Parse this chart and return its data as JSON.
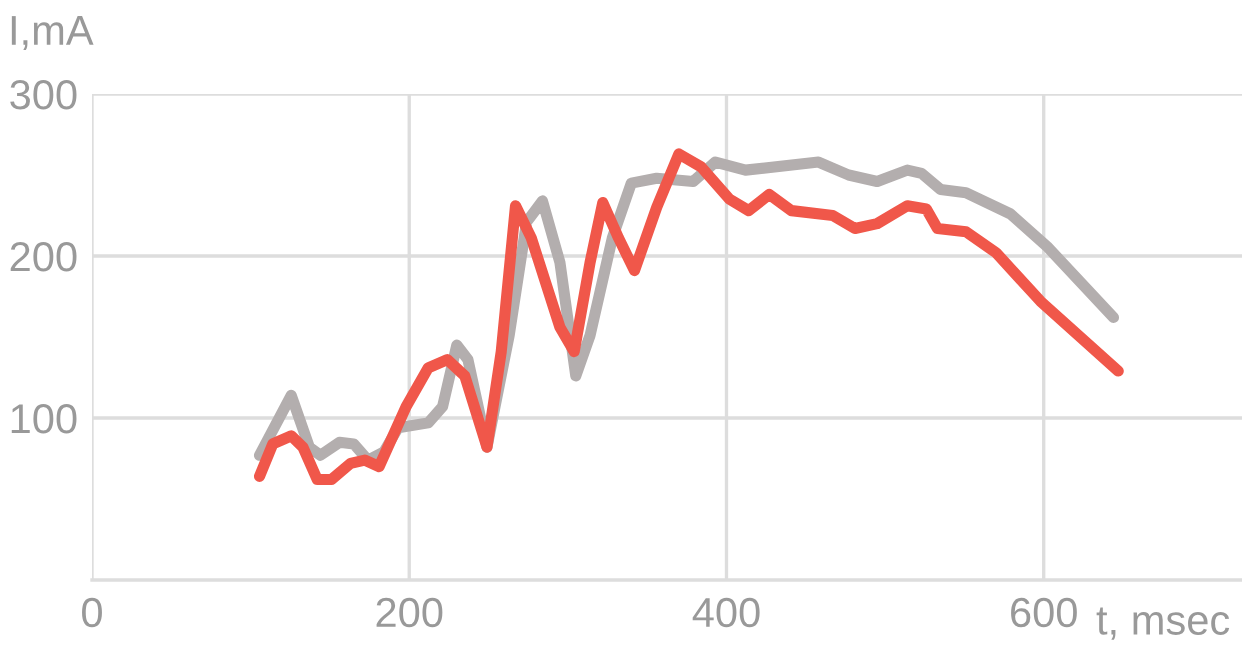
{
  "chart_data": {
    "type": "line",
    "xlabel": "t, msec",
    "ylabel": "I,mA",
    "xlim": [
      0,
      725
    ],
    "ylim": [
      0,
      300
    ],
    "xticks": [
      0,
      200,
      400,
      600
    ],
    "yticks": [
      100,
      200,
      300
    ],
    "grid": true,
    "marker": "none",
    "line_style": "solid",
    "series": [
      {
        "color": "#b3aeae",
        "x": [
          105.6,
          125.6,
          137,
          144,
          156,
          165,
          174,
          184,
          193,
          212,
          221,
          230,
          237,
          249,
          263,
          274,
          284,
          295,
          305,
          314,
          328,
          340,
          356,
          379,
          393,
          412,
          458,
          477,
          495,
          514,
          523,
          535,
          551,
          579,
          602,
          644
        ],
        "values": [
          77,
          114,
          82,
          77,
          85,
          84,
          74,
          79,
          94,
          97,
          107,
          145,
          136,
          82,
          151,
          221,
          234,
          196,
          126,
          151,
          211,
          245,
          248,
          246,
          258,
          253,
          258,
          250,
          246,
          253,
          251,
          241,
          239,
          226,
          206,
          162
        ]
      },
      {
        "color": "#f0574a",
        "x": [
          105.6,
          114,
          125.6,
          133,
          142,
          151,
          163,
          172,
          181,
          198,
          212,
          224,
          235,
          249,
          258,
          267,
          277,
          295,
          304,
          314,
          322,
          332,
          342,
          356,
          370,
          384,
          402,
          414,
          427,
          441,
          467,
          481,
          495,
          514,
          526,
          533,
          551,
          570,
          598,
          647
        ],
        "values": [
          64,
          84,
          89,
          82,
          62,
          62,
          72,
          74,
          70,
          107,
          131,
          136,
          126,
          82,
          141,
          231,
          211,
          156,
          141,
          196,
          233,
          211,
          191,
          230,
          263,
          255,
          235,
          228,
          238,
          228,
          225,
          217,
          220,
          231,
          229,
          217,
          215,
          202,
          172,
          129
        ]
      }
    ]
  }
}
